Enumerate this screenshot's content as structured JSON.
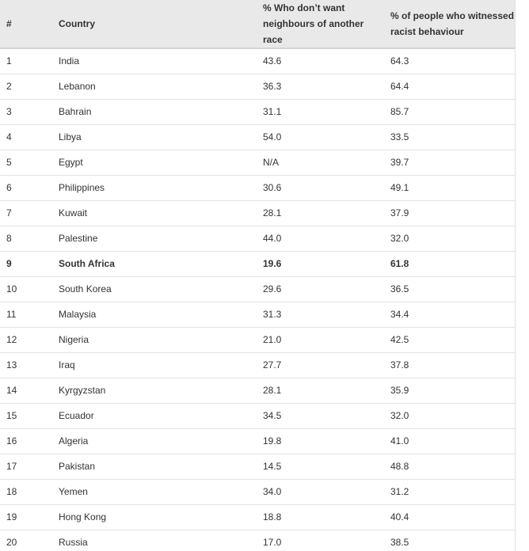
{
  "table": {
    "header": [
      "#",
      "Country",
      "% Who don’t want neighbours of another race",
      "% of people who witnessed racist behaviour"
    ],
    "rows": [
      [
        "1",
        "India",
        "43.6",
        "64.3"
      ],
      [
        "2",
        "Lebanon",
        "36.3",
        "64.4"
      ],
      [
        "3",
        "Bahrain",
        "31.1",
        "85.7"
      ],
      [
        "4",
        "Libya",
        "54.0",
        "33.5"
      ],
      [
        "5",
        "Egypt",
        "N/A",
        "39.7"
      ],
      [
        "6",
        "Philippines",
        "30.6",
        "49.1"
      ],
      [
        "7",
        "Kuwait",
        "28.1",
        "37.9"
      ],
      [
        "8",
        "Palestine",
        "44.0",
        "32.0"
      ],
      [
        "9",
        "South Africa",
        "19.6",
        "61.8"
      ],
      [
        "10",
        "South Korea",
        "29.6",
        "36.5"
      ],
      [
        "11",
        "Malaysia",
        "31.3",
        "34.4"
      ],
      [
        "12",
        "Nigeria",
        "21.0",
        "42.5"
      ],
      [
        "13",
        "Iraq",
        "27.7",
        "37.8"
      ],
      [
        "14",
        "Kyrgyzstan",
        "28.1",
        "35.9"
      ],
      [
        "15",
        "Ecuador",
        "34.5",
        "32.0"
      ],
      [
        "16",
        "Algeria",
        "19.8",
        "41.0"
      ],
      [
        "17",
        "Pakistan",
        "14.5",
        "48.8"
      ],
      [
        "18",
        "Yemen",
        "34.0",
        "31.2"
      ],
      [
        "19",
        "Hong Kong",
        "18.8",
        "40.4"
      ],
      [
        "20",
        "Russia",
        "17.0",
        "38.5"
      ]
    ]
  }
}
